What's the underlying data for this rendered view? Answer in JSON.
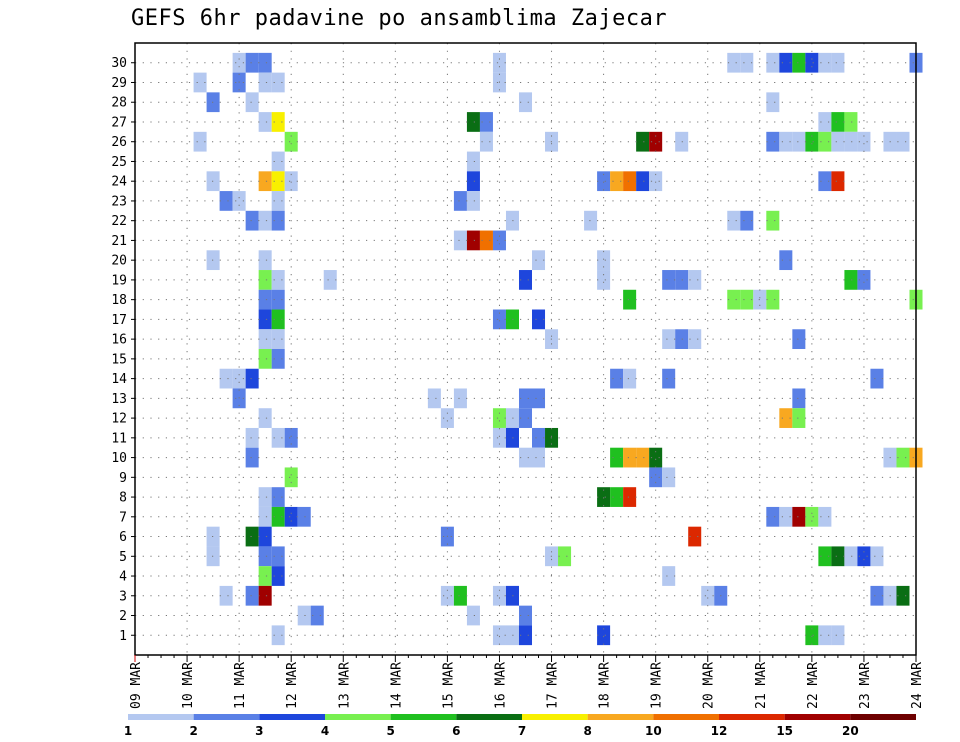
{
  "chart_data": {
    "type": "heatmap",
    "title": "GEFS 6hr padavine po ansamblima Zajecar",
    "x_tick_labels": [
      "09 MAR",
      "10 MAR",
      "11 MAR",
      "12 MAR",
      "13 MAR",
      "14 MAR",
      "15 MAR",
      "16 MAR",
      "17 MAR",
      "18 MAR",
      "19 MAR",
      "20 MAR",
      "21 MAR",
      "22 MAR",
      "23 MAR",
      "24 MAR"
    ],
    "x_unit": "6-hour steps from 09 MAR",
    "y_tick_labels": [
      "1",
      "2",
      "3",
      "4",
      "5",
      "6",
      "7",
      "8",
      "9",
      "10",
      "11",
      "12",
      "13",
      "14",
      "15",
      "16",
      "17",
      "18",
      "19",
      "20",
      "21",
      "22",
      "23",
      "24",
      "25",
      "26",
      "27",
      "28",
      "29",
      "30"
    ],
    "grid": true,
    "colorscale": {
      "labels": [
        "1",
        "2",
        "3",
        "4",
        "5",
        "6",
        "7",
        "8",
        "10",
        "12",
        "15",
        "20"
      ],
      "colors": [
        "#b4c8f0",
        "#5a80e6",
        "#1e46dc",
        "#78f050",
        "#20c020",
        "#0a6e14",
        "#f8f000",
        "#f8a820",
        "#f07000",
        "#dc2800",
        "#a00000",
        "#6e0000"
      ]
    },
    "cells": [
      [
        30,
        8,
        "#b4c8f0"
      ],
      [
        30,
        9,
        "#5a80e6"
      ],
      [
        30,
        10,
        "#5a80e6"
      ],
      [
        30,
        28,
        "#b4c8f0"
      ],
      [
        30,
        46,
        "#b4c8f0"
      ],
      [
        30,
        47,
        "#b4c8f0"
      ],
      [
        30,
        49,
        "#b4c8f0"
      ],
      [
        30,
        50,
        "#1e46dc"
      ],
      [
        30,
        51,
        "#20c020"
      ],
      [
        30,
        52,
        "#1e46dc"
      ],
      [
        30,
        53,
        "#b4c8f0"
      ],
      [
        30,
        54,
        "#b4c8f0"
      ],
      [
        30,
        60,
        "#5a80e6"
      ],
      [
        29,
        5,
        "#b4c8f0"
      ],
      [
        29,
        8,
        "#5a80e6"
      ],
      [
        29,
        10,
        "#b4c8f0"
      ],
      [
        29,
        11,
        "#b4c8f0"
      ],
      [
        29,
        28,
        "#b4c8f0"
      ],
      [
        28,
        6,
        "#5a80e6"
      ],
      [
        28,
        9,
        "#b4c8f0"
      ],
      [
        28,
        30,
        "#b4c8f0"
      ],
      [
        28,
        49,
        "#b4c8f0"
      ],
      [
        27,
        10,
        "#b4c8f0"
      ],
      [
        27,
        11,
        "#f8f000"
      ],
      [
        27,
        26,
        "#0a6e14"
      ],
      [
        27,
        27,
        "#5a80e6"
      ],
      [
        27,
        53,
        "#b4c8f0"
      ],
      [
        27,
        54,
        "#20c020"
      ],
      [
        27,
        55,
        "#78f050"
      ],
      [
        26,
        5,
        "#b4c8f0"
      ],
      [
        26,
        12,
        "#78f050"
      ],
      [
        26,
        27,
        "#b4c8f0"
      ],
      [
        26,
        32,
        "#b4c8f0"
      ],
      [
        26,
        39,
        "#0a6e14"
      ],
      [
        26,
        40,
        "#a00000"
      ],
      [
        26,
        42,
        "#b4c8f0"
      ],
      [
        26,
        49,
        "#5a80e6"
      ],
      [
        26,
        50,
        "#b4c8f0"
      ],
      [
        26,
        51,
        "#b4c8f0"
      ],
      [
        26,
        52,
        "#20c020"
      ],
      [
        26,
        53,
        "#78f050"
      ],
      [
        26,
        54,
        "#b4c8f0"
      ],
      [
        26,
        55,
        "#b4c8f0"
      ],
      [
        26,
        56,
        "#b4c8f0"
      ],
      [
        26,
        58,
        "#b4c8f0"
      ],
      [
        26,
        59,
        "#b4c8f0"
      ],
      [
        25,
        11,
        "#b4c8f0"
      ],
      [
        25,
        26,
        "#b4c8f0"
      ],
      [
        24,
        6,
        "#b4c8f0"
      ],
      [
        24,
        10,
        "#f8a820"
      ],
      [
        24,
        11,
        "#f8f000"
      ],
      [
        24,
        12,
        "#b4c8f0"
      ],
      [
        24,
        26,
        "#1e46dc"
      ],
      [
        24,
        36,
        "#5a80e6"
      ],
      [
        24,
        37,
        "#f8a820"
      ],
      [
        24,
        38,
        "#f07000"
      ],
      [
        24,
        39,
        "#1e46dc"
      ],
      [
        24,
        40,
        "#b4c8f0"
      ],
      [
        24,
        53,
        "#5a80e6"
      ],
      [
        24,
        54,
        "#dc2800"
      ],
      [
        23,
        7,
        "#5a80e6"
      ],
      [
        23,
        8,
        "#b4c8f0"
      ],
      [
        23,
        11,
        "#b4c8f0"
      ],
      [
        23,
        25,
        "#5a80e6"
      ],
      [
        23,
        26,
        "#b4c8f0"
      ],
      [
        22,
        9,
        "#5a80e6"
      ],
      [
        22,
        10,
        "#b4c8f0"
      ],
      [
        22,
        11,
        "#5a80e6"
      ],
      [
        22,
        29,
        "#b4c8f0"
      ],
      [
        22,
        35,
        "#b4c8f0"
      ],
      [
        22,
        46,
        "#b4c8f0"
      ],
      [
        22,
        47,
        "#5a80e6"
      ],
      [
        22,
        49,
        "#78f050"
      ],
      [
        21,
        25,
        "#b4c8f0"
      ],
      [
        21,
        26,
        "#a00000"
      ],
      [
        21,
        27,
        "#f07000"
      ],
      [
        21,
        28,
        "#5a80e6"
      ],
      [
        20,
        6,
        "#b4c8f0"
      ],
      [
        20,
        10,
        "#b4c8f0"
      ],
      [
        20,
        31,
        "#b4c8f0"
      ],
      [
        20,
        36,
        "#b4c8f0"
      ],
      [
        20,
        50,
        "#5a80e6"
      ],
      [
        19,
        10,
        "#78f050"
      ],
      [
        19,
        11,
        "#b4c8f0"
      ],
      [
        19,
        15,
        "#b4c8f0"
      ],
      [
        19,
        30,
        "#1e46dc"
      ],
      [
        19,
        36,
        "#b4c8f0"
      ],
      [
        19,
        41,
        "#5a80e6"
      ],
      [
        19,
        42,
        "#5a80e6"
      ],
      [
        19,
        43,
        "#b4c8f0"
      ],
      [
        19,
        55,
        "#20c020"
      ],
      [
        19,
        56,
        "#5a80e6"
      ],
      [
        18,
        10,
        "#5a80e6"
      ],
      [
        18,
        11,
        "#5a80e6"
      ],
      [
        18,
        38,
        "#20c020"
      ],
      [
        18,
        46,
        "#78f050"
      ],
      [
        18,
        47,
        "#78f050"
      ],
      [
        18,
        48,
        "#b4c8f0"
      ],
      [
        18,
        49,
        "#78f050"
      ],
      [
        18,
        60,
        "#78f050"
      ],
      [
        17,
        10,
        "#1e46dc"
      ],
      [
        17,
        11,
        "#20c020"
      ],
      [
        17,
        28,
        "#5a80e6"
      ],
      [
        17,
        29,
        "#20c020"
      ],
      [
        17,
        31,
        "#1e46dc"
      ],
      [
        16,
        10,
        "#b4c8f0"
      ],
      [
        16,
        11,
        "#b4c8f0"
      ],
      [
        16,
        32,
        "#b4c8f0"
      ],
      [
        16,
        41,
        "#b4c8f0"
      ],
      [
        16,
        42,
        "#5a80e6"
      ],
      [
        16,
        43,
        "#b4c8f0"
      ],
      [
        16,
        51,
        "#5a80e6"
      ],
      [
        15,
        10,
        "#78f050"
      ],
      [
        15,
        11,
        "#5a80e6"
      ],
      [
        14,
        7,
        "#b4c8f0"
      ],
      [
        14,
        8,
        "#b4c8f0"
      ],
      [
        14,
        9,
        "#1e46dc"
      ],
      [
        14,
        37,
        "#5a80e6"
      ],
      [
        14,
        38,
        "#b4c8f0"
      ],
      [
        14,
        41,
        "#5a80e6"
      ],
      [
        14,
        57,
        "#5a80e6"
      ],
      [
        13,
        8,
        "#5a80e6"
      ],
      [
        13,
        23,
        "#b4c8f0"
      ],
      [
        13,
        25,
        "#b4c8f0"
      ],
      [
        13,
        30,
        "#5a80e6"
      ],
      [
        13,
        31,
        "#5a80e6"
      ],
      [
        13,
        51,
        "#5a80e6"
      ],
      [
        12,
        10,
        "#b4c8f0"
      ],
      [
        12,
        24,
        "#b4c8f0"
      ],
      [
        12,
        28,
        "#78f050"
      ],
      [
        12,
        29,
        "#b4c8f0"
      ],
      [
        12,
        30,
        "#5a80e6"
      ],
      [
        12,
        50,
        "#f8a820"
      ],
      [
        12,
        51,
        "#78f050"
      ],
      [
        11,
        9,
        "#b4c8f0"
      ],
      [
        11,
        11,
        "#b4c8f0"
      ],
      [
        11,
        12,
        "#5a80e6"
      ],
      [
        11,
        28,
        "#b4c8f0"
      ],
      [
        11,
        29,
        "#1e46dc"
      ],
      [
        11,
        31,
        "#5a80e6"
      ],
      [
        11,
        32,
        "#0a6e14"
      ],
      [
        10,
        9,
        "#5a80e6"
      ],
      [
        10,
        30,
        "#b4c8f0"
      ],
      [
        10,
        31,
        "#b4c8f0"
      ],
      [
        10,
        37,
        "#20c020"
      ],
      [
        10,
        38,
        "#f8a820"
      ],
      [
        10,
        39,
        "#f8a820"
      ],
      [
        10,
        40,
        "#0a6e14"
      ],
      [
        10,
        58,
        "#b4c8f0"
      ],
      [
        10,
        59,
        "#78f050"
      ],
      [
        10,
        60,
        "#f8a820"
      ],
      [
        9,
        12,
        "#78f050"
      ],
      [
        9,
        40,
        "#5a80e6"
      ],
      [
        9,
        41,
        "#b4c8f0"
      ],
      [
        8,
        10,
        "#b4c8f0"
      ],
      [
        8,
        11,
        "#5a80e6"
      ],
      [
        8,
        36,
        "#0a6e14"
      ],
      [
        8,
        37,
        "#20c020"
      ],
      [
        8,
        38,
        "#dc2800"
      ],
      [
        7,
        10,
        "#b4c8f0"
      ],
      [
        7,
        11,
        "#20c020"
      ],
      [
        7,
        12,
        "#1e46dc"
      ],
      [
        7,
        13,
        "#5a80e6"
      ],
      [
        7,
        49,
        "#5a80e6"
      ],
      [
        7,
        50,
        "#b4c8f0"
      ],
      [
        7,
        51,
        "#a00000"
      ],
      [
        7,
        52,
        "#78f050"
      ],
      [
        7,
        53,
        "#b4c8f0"
      ],
      [
        6,
        6,
        "#b4c8f0"
      ],
      [
        6,
        9,
        "#0a6e14"
      ],
      [
        6,
        10,
        "#1e46dc"
      ],
      [
        6,
        24,
        "#5a80e6"
      ],
      [
        6,
        43,
        "#dc2800"
      ],
      [
        5,
        6,
        "#b4c8f0"
      ],
      [
        5,
        10,
        "#5a80e6"
      ],
      [
        5,
        11,
        "#5a80e6"
      ],
      [
        5,
        32,
        "#b4c8f0"
      ],
      [
        5,
        33,
        "#78f050"
      ],
      [
        5,
        53,
        "#20c020"
      ],
      [
        5,
        54,
        "#0a6e14"
      ],
      [
        5,
        55,
        "#b4c8f0"
      ],
      [
        5,
        56,
        "#1e46dc"
      ],
      [
        5,
        57,
        "#b4c8f0"
      ],
      [
        4,
        10,
        "#78f050"
      ],
      [
        4,
        11,
        "#1e46dc"
      ],
      [
        4,
        41,
        "#b4c8f0"
      ],
      [
        3,
        7,
        "#b4c8f0"
      ],
      [
        3,
        9,
        "#5a80e6"
      ],
      [
        3,
        10,
        "#a00000"
      ],
      [
        3,
        24,
        "#b4c8f0"
      ],
      [
        3,
        25,
        "#20c020"
      ],
      [
        3,
        28,
        "#b4c8f0"
      ],
      [
        3,
        29,
        "#1e46dc"
      ],
      [
        3,
        44,
        "#b4c8f0"
      ],
      [
        3,
        45,
        "#5a80e6"
      ],
      [
        3,
        57,
        "#5a80e6"
      ],
      [
        3,
        58,
        "#b4c8f0"
      ],
      [
        3,
        59,
        "#0a6e14"
      ],
      [
        2,
        13,
        "#b4c8f0"
      ],
      [
        2,
        14,
        "#5a80e6"
      ],
      [
        2,
        26,
        "#b4c8f0"
      ],
      [
        2,
        30,
        "#5a80e6"
      ],
      [
        1,
        11,
        "#b4c8f0"
      ],
      [
        1,
        28,
        "#b4c8f0"
      ],
      [
        1,
        29,
        "#b4c8f0"
      ],
      [
        1,
        30,
        "#1e46dc"
      ],
      [
        1,
        36,
        "#1e46dc"
      ],
      [
        1,
        52,
        "#20c020"
      ],
      [
        1,
        53,
        "#b4c8f0"
      ],
      [
        1,
        54,
        "#b4c8f0"
      ]
    ]
  }
}
